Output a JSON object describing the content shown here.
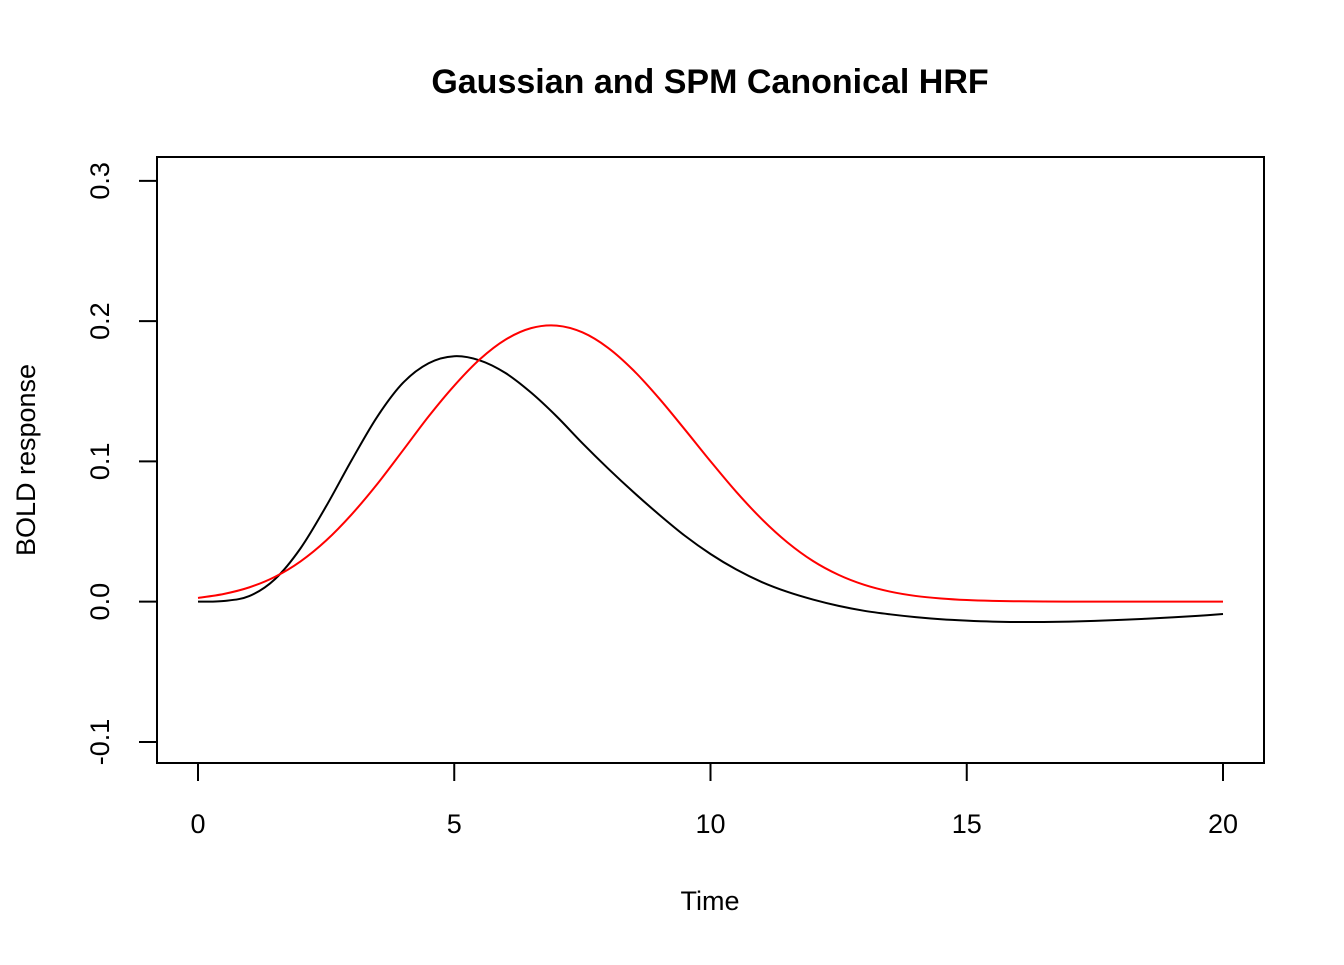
{
  "chart_data": {
    "type": "line",
    "title": "Gaussian and SPM Canonical HRF",
    "xlabel": "Time",
    "ylabel": "BOLD response",
    "xlim": [
      -0.8,
      20.8
    ],
    "ylim": [
      -0.115,
      0.317
    ],
    "xticks": [
      0,
      5,
      10,
      15,
      20
    ],
    "xtick_labels": [
      "0",
      "5",
      "10",
      "15",
      "20"
    ],
    "yticks": [
      -0.1,
      0.0,
      0.1,
      0.2,
      0.3
    ],
    "ytick_labels": [
      "-0.1",
      "0.0",
      "0.1",
      "0.2",
      "0.3"
    ],
    "grid": false,
    "legend": "none",
    "x": [
      0,
      0.5,
      1,
      1.5,
      2,
      2.5,
      3,
      3.5,
      4,
      4.5,
      5,
      5.5,
      6,
      6.5,
      7,
      7.5,
      8,
      8.5,
      9,
      9.5,
      10,
      10.5,
      11,
      11.5,
      12,
      12.5,
      13,
      13.5,
      14,
      14.5,
      15,
      15.5,
      16,
      16.5,
      17,
      17.5,
      18,
      18.5,
      19,
      19.5,
      20
    ],
    "series": [
      {
        "color": "#000000",
        "values": [
          0.0,
          0.0005,
          0.004,
          0.016,
          0.038,
          0.068,
          0.101,
          0.132,
          0.156,
          0.17,
          0.175,
          0.172,
          0.163,
          0.149,
          0.132,
          0.113,
          0.095,
          0.078,
          0.062,
          0.047,
          0.034,
          0.023,
          0.014,
          0.007,
          0.0015,
          -0.003,
          -0.0065,
          -0.009,
          -0.011,
          -0.0125,
          -0.0135,
          -0.0142,
          -0.0145,
          -0.0145,
          -0.0142,
          -0.0137,
          -0.013,
          -0.0122,
          -0.0112,
          -0.0101,
          -0.0088
        ]
      },
      {
        "color": "#ff0000",
        "values": [
          0.0027,
          0.0055,
          0.0102,
          0.0177,
          0.0287,
          0.0436,
          0.0623,
          0.084,
          0.1079,
          0.1321,
          0.154,
          0.1728,
          0.1868,
          0.195,
          0.1968,
          0.192,
          0.181,
          0.1648,
          0.1448,
          0.1227,
          0.1001,
          0.0784,
          0.0589,
          0.0423,
          0.029,
          0.0191,
          0.012,
          0.0072,
          0.0041,
          0.0023,
          0.0012,
          0.0006,
          0.0003,
          0.0001,
          0.0,
          0.0,
          0.0,
          0.0,
          0.0,
          0.0,
          0.0
        ]
      }
    ]
  }
}
